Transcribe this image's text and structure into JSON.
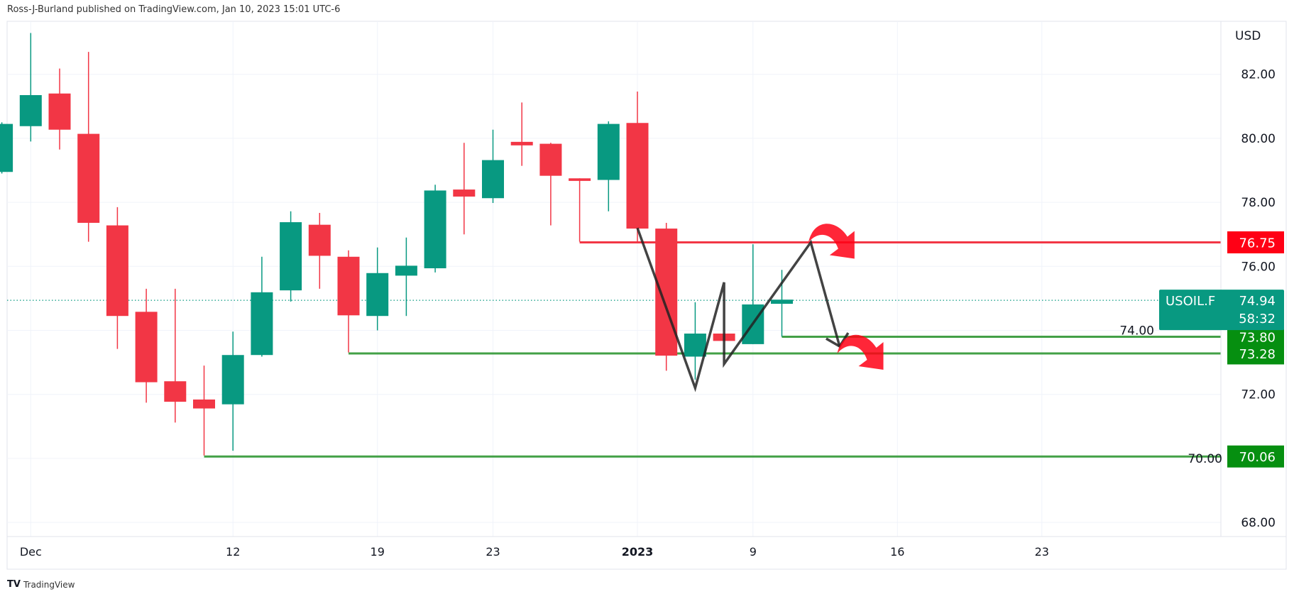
{
  "header": {
    "published": "Ross-J-Burland published on TradingView.com, Jan 10, 2023 15:01 UTC-6"
  },
  "footer": {
    "logo_text": "TradingView",
    "logo_mark": "TV"
  },
  "colors": {
    "up": "#089981",
    "down": "#f23645",
    "resistance": "#ff0015",
    "support": "#068f10",
    "grid": "#f0f3fa"
  },
  "chart_data": {
    "type": "candlestick",
    "symbol": "USOIL.F",
    "currency": "USD",
    "ylim": [
      67.2,
      84.2
    ],
    "y_ticks": [
      "68.00",
      "70.00",
      "72.00",
      "74.00",
      "76.00",
      "78.00",
      "80.00",
      "82.00"
    ],
    "y_tick_values": [
      68,
      70,
      72,
      74,
      76,
      78,
      80,
      82
    ],
    "x_ticks": [
      {
        "label": "Dec",
        "index": 1
      },
      {
        "label": "12",
        "index": 8
      },
      {
        "label": "19",
        "index": 13
      },
      {
        "label": "23",
        "index": 17
      },
      {
        "label": "2023",
        "index": 22
      },
      {
        "label": "9",
        "index": 26
      },
      {
        "label": "16",
        "index": 31
      },
      {
        "label": "23",
        "index": 36
      }
    ],
    "candles": [
      {
        "o": 78.95,
        "h": 80.5,
        "l": 78.9,
        "c": 80.45
      },
      {
        "o": 80.38,
        "h": 83.29,
        "l": 79.9,
        "c": 81.35
      },
      {
        "o": 81.4,
        "h": 82.18,
        "l": 79.65,
        "c": 80.27
      },
      {
        "o": 80.14,
        "h": 82.7,
        "l": 76.77,
        "c": 77.36
      },
      {
        "o": 77.28,
        "h": 77.85,
        "l": 73.42,
        "c": 74.45
      },
      {
        "o": 74.58,
        "h": 75.3,
        "l": 71.74,
        "c": 72.38
      },
      {
        "o": 72.41,
        "h": 75.3,
        "l": 71.12,
        "c": 71.77
      },
      {
        "o": 71.84,
        "h": 72.9,
        "l": 70.09,
        "c": 71.56
      },
      {
        "o": 71.69,
        "h": 73.96,
        "l": 70.24,
        "c": 73.23
      },
      {
        "o": 73.23,
        "h": 76.3,
        "l": 73.18,
        "c": 75.19
      },
      {
        "o": 75.25,
        "h": 77.72,
        "l": 74.9,
        "c": 77.38
      },
      {
        "o": 77.3,
        "h": 77.67,
        "l": 75.3,
        "c": 76.33
      },
      {
        "o": 76.3,
        "h": 76.5,
        "l": 73.31,
        "c": 74.47
      },
      {
        "o": 74.45,
        "h": 76.59,
        "l": 74.0,
        "c": 75.79
      },
      {
        "o": 75.71,
        "h": 76.9,
        "l": 74.45,
        "c": 76.02
      },
      {
        "o": 75.94,
        "h": 78.55,
        "l": 75.81,
        "c": 78.37
      },
      {
        "o": 78.4,
        "h": 79.86,
        "l": 77.0,
        "c": 78.18
      },
      {
        "o": 78.13,
        "h": 80.27,
        "l": 77.98,
        "c": 79.32
      },
      {
        "o": 79.89,
        "h": 81.12,
        "l": 79.14,
        "c": 79.78
      },
      {
        "o": 79.83,
        "h": 79.86,
        "l": 77.28,
        "c": 78.83
      },
      {
        "o": 78.75,
        "h": 78.75,
        "l": 76.77,
        "c": 78.67
      },
      {
        "o": 78.7,
        "h": 80.53,
        "l": 77.72,
        "c": 80.45
      },
      {
        "o": 80.48,
        "h": 81.46,
        "l": 76.77,
        "c": 77.18
      },
      {
        "o": 77.18,
        "h": 77.36,
        "l": 72.74,
        "c": 73.21
      },
      {
        "o": 73.18,
        "h": 74.88,
        "l": 72.46,
        "c": 73.9
      },
      {
        "o": 73.9,
        "h": 73.9,
        "l": 73.67,
        "c": 73.67
      },
      {
        "o": 73.57,
        "h": 76.69,
        "l": 73.57,
        "c": 74.81
      },
      {
        "o": 74.83,
        "h": 75.89,
        "l": 73.8,
        "c": 74.96
      }
    ],
    "last_price": {
      "label": "74.94",
      "value": 74.94,
      "symbol": "USOIL.F",
      "countdown": "58:32"
    },
    "levels": [
      {
        "label": "76.75",
        "value": 76.75,
        "from_index": 20,
        "kind": "resistance"
      },
      {
        "label": "73.80",
        "value": 73.8,
        "from_index": 27,
        "kind": "support"
      },
      {
        "label": "73.28",
        "value": 73.28,
        "from_index": 12,
        "kind": "support"
      },
      {
        "label": "70.06",
        "value": 70.06,
        "from_index": 7,
        "kind": "support"
      }
    ],
    "zigzag": [
      {
        "i": 22,
        "p": 77.2
      },
      {
        "i": 24,
        "p": 72.2
      },
      {
        "i": 25,
        "p": 75.5
      },
      {
        "i": 25,
        "p": 72.95
      },
      {
        "i": 28,
        "p": 76.75
      },
      {
        "i": 29,
        "p": 73.5
      }
    ],
    "arrows": [
      {
        "i": 28.9,
        "p": 76.75
      },
      {
        "i": 29.9,
        "p": 73.28
      }
    ]
  }
}
